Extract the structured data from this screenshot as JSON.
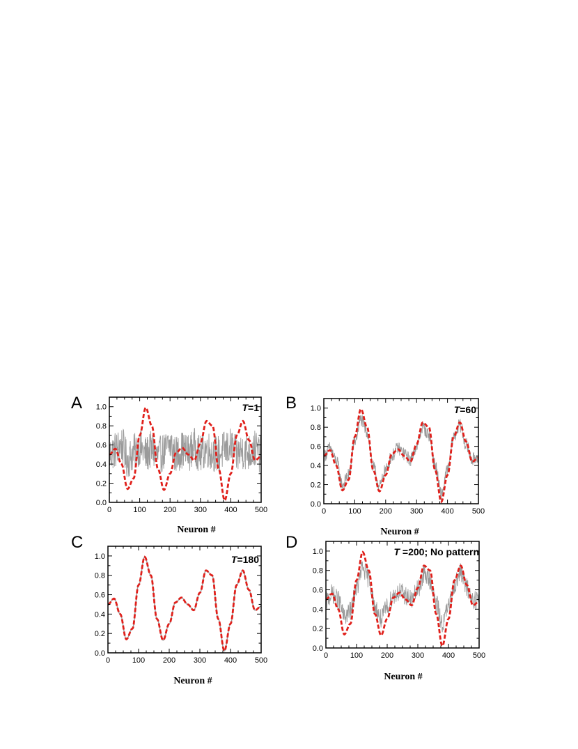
{
  "colors": {
    "noisy_series": "#9a9a9a",
    "target_series": "#e0201b",
    "axis": "#000000",
    "background": "#ffffff"
  },
  "chart_data": [
    {
      "panel": "A",
      "type": "line",
      "annotation": {
        "italic": "T",
        "rest": "=1"
      },
      "xlabel": "Neuron #",
      "ylabel": "",
      "xlim": [
        0,
        500
      ],
      "ylim": [
        0,
        1.1
      ],
      "xticks": [
        "0",
        "100",
        "200",
        "300",
        "400",
        "500"
      ],
      "yticks": [
        "0.0",
        "0.2",
        "0.4",
        "0.6",
        "0.8",
        "1.0"
      ],
      "noise_amplitude": 0.2,
      "series": [
        {
          "style": "noisy",
          "x": [
            0,
            20,
            40,
            60,
            80,
            100,
            120,
            140,
            160,
            180,
            200,
            220,
            240,
            260,
            280,
            300,
            320,
            340,
            360,
            380,
            400,
            420,
            440,
            460,
            480,
            500
          ],
          "y": [
            0.5,
            0.55,
            0.6,
            0.45,
            0.52,
            0.58,
            0.5,
            0.55,
            0.48,
            0.53,
            0.6,
            0.5,
            0.55,
            0.52,
            0.58,
            0.5,
            0.56,
            0.52,
            0.5,
            0.55,
            0.58,
            0.5,
            0.54,
            0.52,
            0.56,
            0.5
          ]
        },
        {
          "style": "target",
          "x": [
            0,
            20,
            40,
            60,
            80,
            100,
            120,
            140,
            160,
            180,
            200,
            220,
            240,
            260,
            280,
            300,
            320,
            340,
            360,
            380,
            400,
            420,
            440,
            460,
            480,
            500
          ],
          "y": [
            0.5,
            0.56,
            0.4,
            0.14,
            0.25,
            0.7,
            0.99,
            0.8,
            0.35,
            0.13,
            0.3,
            0.52,
            0.57,
            0.5,
            0.44,
            0.62,
            0.85,
            0.8,
            0.35,
            0.02,
            0.3,
            0.7,
            0.85,
            0.65,
            0.44,
            0.48
          ]
        }
      ]
    },
    {
      "panel": "B",
      "type": "line",
      "annotation": {
        "italic": "T",
        "rest": "=60"
      },
      "xlabel": "Neuron #",
      "ylabel": "",
      "xlim": [
        0,
        500
      ],
      "ylim": [
        0,
        1.1
      ],
      "xticks": [
        "0",
        "100",
        "200",
        "300",
        "400",
        "500"
      ],
      "yticks": [
        "0.0",
        "0.2",
        "0.4",
        "0.6",
        "0.8",
        "1.0"
      ],
      "noise_amplitude": 0.07,
      "series": [
        {
          "style": "noisy",
          "x": [
            0,
            20,
            40,
            60,
            80,
            100,
            120,
            140,
            160,
            180,
            200,
            220,
            240,
            260,
            280,
            300,
            320,
            340,
            360,
            380,
            400,
            420,
            440,
            460,
            480,
            500
          ],
          "y": [
            0.5,
            0.58,
            0.45,
            0.2,
            0.3,
            0.65,
            0.88,
            0.75,
            0.38,
            0.18,
            0.35,
            0.5,
            0.58,
            0.52,
            0.46,
            0.6,
            0.8,
            0.72,
            0.4,
            0.1,
            0.35,
            0.7,
            0.82,
            0.62,
            0.46,
            0.5
          ]
        },
        {
          "style": "target",
          "x": [
            0,
            20,
            40,
            60,
            80,
            100,
            120,
            140,
            160,
            180,
            200,
            220,
            240,
            260,
            280,
            300,
            320,
            340,
            360,
            380,
            400,
            420,
            440,
            460,
            480,
            500
          ],
          "y": [
            0.5,
            0.56,
            0.4,
            0.14,
            0.25,
            0.7,
            0.99,
            0.8,
            0.35,
            0.13,
            0.3,
            0.52,
            0.57,
            0.5,
            0.44,
            0.62,
            0.85,
            0.8,
            0.35,
            0.02,
            0.3,
            0.7,
            0.85,
            0.65,
            0.44,
            0.48
          ]
        }
      ]
    },
    {
      "panel": "C",
      "type": "line",
      "annotation": {
        "italic": "T",
        "rest": "=180"
      },
      "xlabel": "Neuron #",
      "ylabel": "",
      "xlim": [
        0,
        500
      ],
      "ylim": [
        0,
        1.1
      ],
      "xticks": [
        "0",
        "100",
        "200",
        "300",
        "400",
        "500"
      ],
      "yticks": [
        "0.0",
        "0.2",
        "0.4",
        "0.6",
        "0.8",
        "1.0"
      ],
      "noise_amplitude": 0.0,
      "series": [
        {
          "style": "noisy",
          "x": [
            0,
            20,
            40,
            60,
            80,
            100,
            120,
            140,
            160,
            180,
            200,
            220,
            240,
            260,
            280,
            300,
            320,
            340,
            360,
            380,
            400,
            420,
            440,
            460,
            480,
            500
          ],
          "y": [
            0.5,
            0.56,
            0.4,
            0.14,
            0.25,
            0.7,
            0.99,
            0.8,
            0.35,
            0.13,
            0.3,
            0.52,
            0.57,
            0.5,
            0.44,
            0.62,
            0.85,
            0.8,
            0.35,
            0.02,
            0.3,
            0.7,
            0.85,
            0.65,
            0.44,
            0.48
          ]
        },
        {
          "style": "target",
          "x": [
            0,
            20,
            40,
            60,
            80,
            100,
            120,
            140,
            160,
            180,
            200,
            220,
            240,
            260,
            280,
            300,
            320,
            340,
            360,
            380,
            400,
            420,
            440,
            460,
            480,
            500
          ],
          "y": [
            0.5,
            0.56,
            0.4,
            0.14,
            0.25,
            0.7,
            0.99,
            0.8,
            0.35,
            0.13,
            0.3,
            0.52,
            0.57,
            0.5,
            0.44,
            0.62,
            0.85,
            0.8,
            0.35,
            0.02,
            0.3,
            0.7,
            0.85,
            0.65,
            0.44,
            0.48
          ]
        }
      ]
    },
    {
      "panel": "D",
      "type": "line",
      "annotation": {
        "italic": "T",
        "rest": " =200; No pattern"
      },
      "xlabel": "Neuron #",
      "ylabel": "",
      "xlim": [
        0,
        500
      ],
      "ylim": [
        0,
        1.1
      ],
      "xticks": [
        "0",
        "100",
        "200",
        "300",
        "400",
        "500"
      ],
      "yticks": [
        "0.0",
        "0.2",
        "0.4",
        "0.6",
        "0.8",
        "1.0"
      ],
      "noise_amplitude": 0.1,
      "series": [
        {
          "style": "noisy",
          "x": [
            0,
            20,
            40,
            60,
            80,
            100,
            120,
            140,
            160,
            180,
            200,
            220,
            240,
            260,
            280,
            300,
            320,
            340,
            360,
            380,
            400,
            420,
            440,
            460,
            480,
            500
          ],
          "y": [
            0.48,
            0.56,
            0.5,
            0.32,
            0.38,
            0.62,
            0.82,
            0.72,
            0.42,
            0.3,
            0.42,
            0.54,
            0.58,
            0.54,
            0.5,
            0.6,
            0.76,
            0.7,
            0.45,
            0.25,
            0.42,
            0.66,
            0.78,
            0.62,
            0.5,
            0.5
          ]
        },
        {
          "style": "target",
          "x": [
            0,
            20,
            40,
            60,
            80,
            100,
            120,
            140,
            160,
            180,
            200,
            220,
            240,
            260,
            280,
            300,
            320,
            340,
            360,
            380,
            400,
            420,
            440,
            460,
            480,
            500
          ],
          "y": [
            0.5,
            0.56,
            0.4,
            0.14,
            0.25,
            0.7,
            0.99,
            0.8,
            0.35,
            0.13,
            0.3,
            0.52,
            0.57,
            0.5,
            0.44,
            0.62,
            0.85,
            0.8,
            0.35,
            0.02,
            0.3,
            0.7,
            0.85,
            0.65,
            0.44,
            0.48
          ]
        }
      ]
    }
  ]
}
